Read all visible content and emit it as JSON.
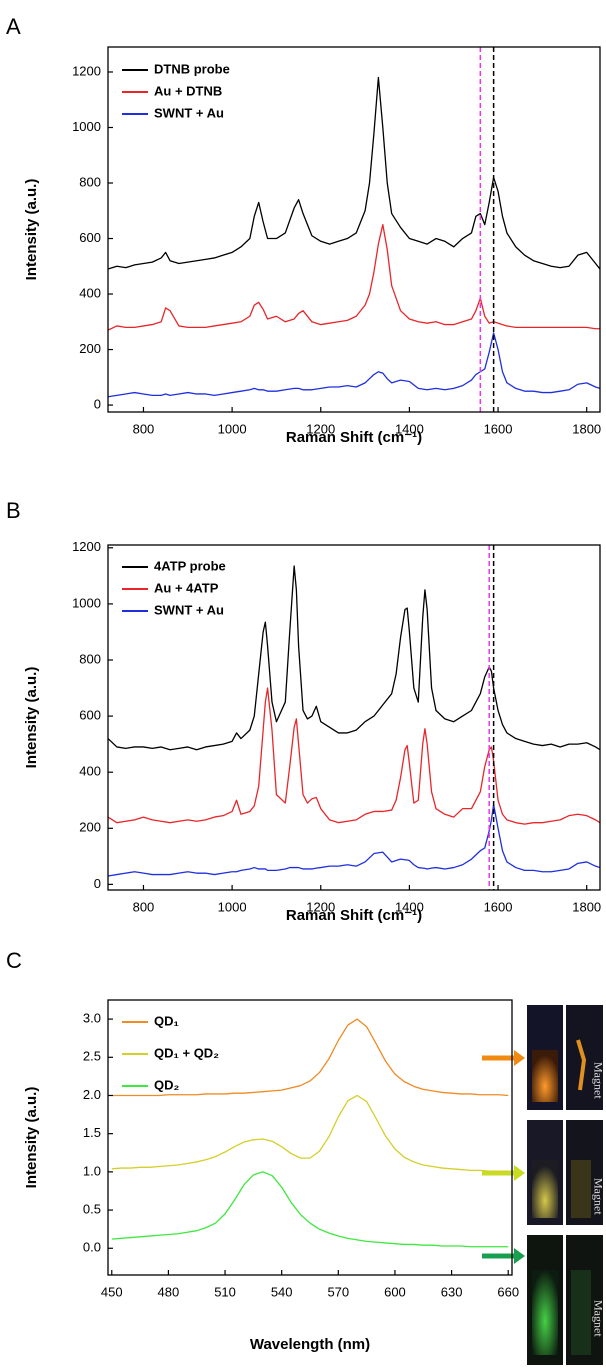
{
  "chart_data": [
    {
      "type": "line",
      "panel_label": "A",
      "x_label": "Raman Shift (cm⁻¹)",
      "y_label": "Intensity (a.u.)",
      "xlim": [
        720,
        1830
      ],
      "ylim": [
        -25,
        1290
      ],
      "xticks": [
        800,
        1000,
        1200,
        1400,
        1600,
        1800
      ],
      "yticks": [
        0,
        200,
        400,
        600,
        800,
        1000,
        1200
      ],
      "reference_lines": [
        {
          "x": 1560,
          "color": "#ee33ee"
        },
        {
          "x": 1590,
          "color": "#000000"
        }
      ],
      "x": [
        720,
        740,
        760,
        780,
        800,
        820,
        840,
        850,
        860,
        880,
        900,
        920,
        940,
        960,
        980,
        1000,
        1020,
        1040,
        1050,
        1060,
        1070,
        1080,
        1100,
        1120,
        1140,
        1150,
        1160,
        1180,
        1200,
        1220,
        1240,
        1260,
        1280,
        1300,
        1310,
        1320,
        1330,
        1340,
        1350,
        1360,
        1380,
        1400,
        1420,
        1440,
        1460,
        1480,
        1500,
        1520,
        1540,
        1550,
        1560,
        1570,
        1580,
        1590,
        1600,
        1610,
        1620,
        1640,
        1660,
        1680,
        1700,
        1720,
        1740,
        1760,
        1780,
        1800,
        1820,
        1830
      ],
      "series": [
        {
          "name": "DTNB probe",
          "color": "#000000",
          "values": [
            490,
            500,
            495,
            505,
            510,
            515,
            530,
            550,
            520,
            510,
            515,
            520,
            525,
            530,
            540,
            550,
            570,
            600,
            680,
            730,
            660,
            600,
            600,
            620,
            710,
            740,
            690,
            610,
            590,
            580,
            590,
            600,
            620,
            700,
            800,
            980,
            1180,
            1000,
            800,
            690,
            640,
            600,
            590,
            580,
            600,
            590,
            570,
            600,
            620,
            680,
            690,
            650,
            730,
            820,
            770,
            680,
            620,
            570,
            540,
            520,
            510,
            500,
            495,
            500,
            540,
            550,
            510,
            490
          ]
        },
        {
          "name": "Au + DTNB",
          "color": "#e8262a",
          "values": [
            270,
            285,
            280,
            280,
            285,
            290,
            300,
            350,
            340,
            285,
            280,
            280,
            280,
            285,
            290,
            295,
            300,
            320,
            360,
            370,
            345,
            310,
            320,
            300,
            310,
            330,
            340,
            300,
            290,
            295,
            300,
            305,
            320,
            360,
            400,
            480,
            580,
            650,
            560,
            430,
            340,
            310,
            300,
            295,
            300,
            290,
            290,
            300,
            310,
            340,
            385,
            320,
            295,
            300,
            295,
            290,
            285,
            280,
            280,
            280,
            280,
            280,
            280,
            280,
            280,
            280,
            275,
            275
          ]
        },
        {
          "name": "SWNT + Au",
          "color": "#1f2fe0",
          "values": [
            30,
            35,
            40,
            45,
            40,
            35,
            35,
            40,
            35,
            40,
            45,
            40,
            40,
            35,
            40,
            45,
            50,
            55,
            60,
            55,
            55,
            50,
            50,
            55,
            60,
            60,
            55,
            55,
            60,
            65,
            65,
            70,
            65,
            80,
            95,
            110,
            120,
            115,
            95,
            80,
            90,
            85,
            60,
            55,
            60,
            55,
            60,
            70,
            90,
            110,
            120,
            130,
            190,
            260,
            200,
            120,
            80,
            60,
            50,
            50,
            45,
            45,
            50,
            55,
            75,
            80,
            65,
            60
          ]
        }
      ]
    },
    {
      "type": "line",
      "panel_label": "B",
      "x_label": "Raman Shift (cm⁻¹)",
      "y_label": "Intensity (a.u.)",
      "xlim": [
        720,
        1830
      ],
      "ylim": [
        -20,
        1210
      ],
      "xticks": [
        800,
        1000,
        1200,
        1400,
        1600,
        1800
      ],
      "yticks": [
        0,
        200,
        400,
        600,
        800,
        1000,
        1200
      ],
      "reference_lines": [
        {
          "x": 1580,
          "color": "#ee33ee"
        },
        {
          "x": 1590,
          "color": "#000000"
        }
      ],
      "x": [
        720,
        740,
        760,
        780,
        800,
        820,
        840,
        860,
        880,
        900,
        920,
        940,
        960,
        980,
        1000,
        1010,
        1020,
        1040,
        1050,
        1060,
        1070,
        1075,
        1080,
        1090,
        1100,
        1120,
        1130,
        1140,
        1145,
        1150,
        1160,
        1170,
        1180,
        1190,
        1200,
        1220,
        1240,
        1260,
        1280,
        1300,
        1320,
        1340,
        1360,
        1370,
        1380,
        1390,
        1395,
        1400,
        1410,
        1420,
        1430,
        1435,
        1440,
        1450,
        1460,
        1480,
        1500,
        1520,
        1540,
        1560,
        1570,
        1580,
        1585,
        1590,
        1600,
        1610,
        1620,
        1640,
        1660,
        1680,
        1700,
        1720,
        1740,
        1760,
        1780,
        1800,
        1820,
        1830
      ],
      "series": [
        {
          "name": "4ATP probe",
          "color": "#000000",
          "values": [
            520,
            490,
            485,
            490,
            490,
            485,
            490,
            480,
            485,
            490,
            480,
            490,
            495,
            500,
            510,
            540,
            520,
            550,
            600,
            750,
            900,
            935,
            850,
            650,
            580,
            650,
            900,
            1135,
            1050,
            850,
            620,
            590,
            600,
            635,
            580,
            560,
            540,
            540,
            550,
            580,
            600,
            640,
            680,
            750,
            880,
            980,
            985,
            900,
            700,
            650,
            950,
            1050,
            980,
            700,
            620,
            590,
            580,
            600,
            620,
            680,
            740,
            775,
            760,
            700,
            620,
            570,
            540,
            520,
            510,
            500,
            495,
            500,
            490,
            500,
            500,
            505,
            490,
            480
          ]
        },
        {
          "name": "Au + 4ATP",
          "color": "#e8262a",
          "values": [
            240,
            220,
            225,
            230,
            240,
            230,
            225,
            220,
            225,
            230,
            225,
            230,
            240,
            245,
            260,
            300,
            250,
            260,
            280,
            350,
            550,
            650,
            700,
            550,
            320,
            290,
            420,
            560,
            590,
            500,
            320,
            290,
            305,
            310,
            270,
            230,
            220,
            225,
            230,
            250,
            260,
            260,
            265,
            300,
            380,
            480,
            495,
            430,
            290,
            300,
            500,
            555,
            500,
            330,
            270,
            250,
            240,
            270,
            270,
            330,
            420,
            480,
            490,
            440,
            300,
            250,
            230,
            220,
            215,
            220,
            220,
            225,
            230,
            245,
            250,
            245,
            230,
            220
          ]
        },
        {
          "name": "SWNT + Au",
          "color": "#1f2fe0",
          "values": [
            30,
            35,
            40,
            45,
            40,
            35,
            35,
            35,
            40,
            45,
            40,
            40,
            35,
            40,
            45,
            45,
            50,
            55,
            60,
            55,
            55,
            55,
            50,
            50,
            50,
            55,
            60,
            60,
            60,
            60,
            55,
            55,
            55,
            58,
            60,
            65,
            65,
            70,
            65,
            80,
            110,
            115,
            80,
            85,
            90,
            88,
            87,
            85,
            70,
            60,
            58,
            57,
            55,
            58,
            60,
            55,
            60,
            70,
            90,
            120,
            130,
            190,
            230,
            285,
            200,
            120,
            80,
            60,
            50,
            50,
            45,
            45,
            50,
            55,
            75,
            80,
            65,
            60
          ]
        }
      ]
    },
    {
      "type": "line",
      "panel_label": "C",
      "x_label": "Wavelength (nm)",
      "y_label": "Intensity (a.u.)",
      "xlim": [
        448,
        662
      ],
      "ylim": [
        -0.35,
        3.25
      ],
      "xticks": [
        450,
        480,
        510,
        540,
        570,
        600,
        630,
        660
      ],
      "yticks": [
        {
          "value": 0,
          "label": "0.0"
        },
        0.5,
        {
          "value": 1,
          "label": "1.0"
        },
        1.5,
        {
          "value": 2,
          "label": "2.0"
        },
        2.5,
        {
          "value": 3,
          "label": "3.0"
        }
      ],
      "photo_labels": [
        "Magnet",
        "Magnet",
        "Magnet"
      ],
      "x": [
        450,
        455,
        460,
        465,
        470,
        475,
        480,
        485,
        490,
        495,
        500,
        505,
        510,
        515,
        520,
        525,
        530,
        535,
        540,
        545,
        550,
        555,
        560,
        565,
        570,
        575,
        580,
        585,
        590,
        595,
        600,
        605,
        610,
        615,
        620,
        625,
        630,
        635,
        640,
        645,
        650,
        655,
        660
      ],
      "series": [
        {
          "name": "QD₁",
          "color": "#f08a24",
          "values": [
            2.0,
            2.0,
            2.0,
            2.0,
            2.0,
            2.0,
            2.01,
            2.01,
            2.01,
            2.01,
            2.02,
            2.02,
            2.02,
            2.03,
            2.03,
            2.04,
            2.05,
            2.06,
            2.07,
            2.1,
            2.13,
            2.19,
            2.3,
            2.48,
            2.72,
            2.92,
            3.0,
            2.9,
            2.68,
            2.45,
            2.28,
            2.18,
            2.12,
            2.08,
            2.06,
            2.04,
            2.03,
            2.02,
            2.02,
            2.01,
            2.01,
            2.01,
            2.0
          ]
        },
        {
          "name": "QD₁ + QD₂",
          "color": "#d4cf2a",
          "values": [
            1.04,
            1.05,
            1.05,
            1.06,
            1.06,
            1.07,
            1.08,
            1.09,
            1.11,
            1.13,
            1.16,
            1.2,
            1.26,
            1.33,
            1.39,
            1.42,
            1.43,
            1.4,
            1.33,
            1.24,
            1.18,
            1.18,
            1.27,
            1.46,
            1.72,
            1.93,
            2.0,
            1.92,
            1.7,
            1.47,
            1.3,
            1.19,
            1.13,
            1.09,
            1.07,
            1.05,
            1.04,
            1.03,
            1.02,
            1.02,
            1.01,
            1.01,
            1.0
          ]
        },
        {
          "name": "QD₂",
          "color": "#3ee83e",
          "values": [
            0.12,
            0.13,
            0.14,
            0.15,
            0.16,
            0.17,
            0.18,
            0.19,
            0.21,
            0.23,
            0.27,
            0.33,
            0.45,
            0.63,
            0.83,
            0.96,
            1.0,
            0.95,
            0.8,
            0.6,
            0.44,
            0.33,
            0.25,
            0.2,
            0.16,
            0.13,
            0.11,
            0.09,
            0.08,
            0.07,
            0.06,
            0.05,
            0.05,
            0.04,
            0.04,
            0.03,
            0.03,
            0.03,
            0.02,
            0.02,
            0.02,
            0.02,
            0.02
          ]
        }
      ]
    }
  ]
}
